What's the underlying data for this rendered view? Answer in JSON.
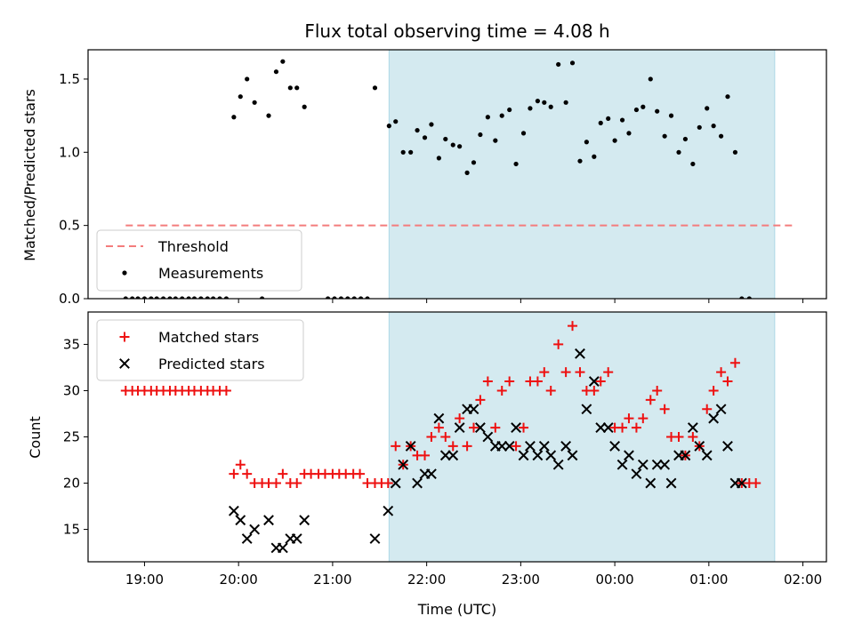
{
  "chart_data": {
    "type": "scatter",
    "title": "Flux total observing time = 4.08 h",
    "xlabel": "Time (UTC)",
    "x_unit": "hours since 00:00 UTC (negative = previous evening)",
    "xlim": [
      -5.6,
      2.25
    ],
    "x_ticks": [
      {
        "value": -5,
        "label": "19:00"
      },
      {
        "value": -4,
        "label": "20:00"
      },
      {
        "value": -3,
        "label": "21:00"
      },
      {
        "value": -2,
        "label": "22:00"
      },
      {
        "value": -1,
        "label": "23:00"
      },
      {
        "value": 0,
        "label": "00:00"
      },
      {
        "value": 1,
        "label": "01:00"
      },
      {
        "value": 2,
        "label": "02:00"
      }
    ],
    "highlight_span": {
      "from": -2.4,
      "to": 1.7,
      "color": "#d4eaf0"
    },
    "top": {
      "ylabel": "Matched/Predicted stars",
      "ylim": [
        0,
        1.7
      ],
      "y_ticks": [
        0.0,
        0.5,
        1.0,
        1.5
      ],
      "y_tick_labels": [
        "0.0",
        "0.5",
        "1.0",
        "1.5"
      ],
      "threshold": {
        "name": "Threshold",
        "value": 0.5,
        "x_from": -5.2,
        "x_to": 1.9,
        "color": "#f47c7c"
      },
      "measurements": {
        "name": "Measurements",
        "color": "#000000",
        "points": [
          [
            -5.2,
            0
          ],
          [
            -5.13,
            0
          ],
          [
            -5.07,
            0
          ],
          [
            -5.0,
            0
          ],
          [
            -4.93,
            0
          ],
          [
            -4.87,
            0
          ],
          [
            -4.8,
            0
          ],
          [
            -4.73,
            0
          ],
          [
            -4.67,
            0
          ],
          [
            -4.6,
            0
          ],
          [
            -4.53,
            0
          ],
          [
            -4.47,
            0
          ],
          [
            -4.4,
            0
          ],
          [
            -4.33,
            0
          ],
          [
            -4.27,
            0
          ],
          [
            -4.2,
            0
          ],
          [
            -4.13,
            0
          ],
          [
            -4.05,
            1.24
          ],
          [
            -3.98,
            1.38
          ],
          [
            -3.91,
            1.5
          ],
          [
            -3.83,
            1.34
          ],
          [
            -3.75,
            0
          ],
          [
            -3.68,
            1.25
          ],
          [
            -3.6,
            1.55
          ],
          [
            -3.53,
            1.62
          ],
          [
            -3.45,
            1.44
          ],
          [
            -3.38,
            1.44
          ],
          [
            -3.3,
            1.31
          ],
          [
            -3.05,
            0
          ],
          [
            -2.98,
            0
          ],
          [
            -2.91,
            0
          ],
          [
            -2.84,
            0
          ],
          [
            -2.77,
            0
          ],
          [
            -2.7,
            0
          ],
          [
            -2.63,
            0
          ],
          [
            -2.55,
            1.44
          ],
          [
            -2.4,
            1.18
          ],
          [
            -2.33,
            1.21
          ],
          [
            -2.25,
            1.0
          ],
          [
            -2.17,
            1.0
          ],
          [
            -2.1,
            1.15
          ],
          [
            -2.02,
            1.1
          ],
          [
            -1.95,
            1.19
          ],
          [
            -1.87,
            0.96
          ],
          [
            -1.8,
            1.09
          ],
          [
            -1.72,
            1.05
          ],
          [
            -1.65,
            1.04
          ],
          [
            -1.57,
            0.86
          ],
          [
            -1.5,
            0.93
          ],
          [
            -1.43,
            1.12
          ],
          [
            -1.35,
            1.24
          ],
          [
            -1.27,
            1.08
          ],
          [
            -1.2,
            1.25
          ],
          [
            -1.12,
            1.29
          ],
          [
            -1.05,
            0.92
          ],
          [
            -0.97,
            1.13
          ],
          [
            -0.9,
            1.3
          ],
          [
            -0.82,
            1.35
          ],
          [
            -0.75,
            1.34
          ],
          [
            -0.68,
            1.31
          ],
          [
            -0.6,
            1.6
          ],
          [
            -0.52,
            1.34
          ],
          [
            -0.45,
            1.61
          ],
          [
            -0.37,
            0.94
          ],
          [
            -0.3,
            1.07
          ],
          [
            -0.22,
            0.97
          ],
          [
            -0.15,
            1.2
          ],
          [
            -0.07,
            1.23
          ],
          [
            0.0,
            1.08
          ],
          [
            0.08,
            1.22
          ],
          [
            0.15,
            1.13
          ],
          [
            0.23,
            1.29
          ],
          [
            0.3,
            1.31
          ],
          [
            0.38,
            1.5
          ],
          [
            0.45,
            1.28
          ],
          [
            0.53,
            1.11
          ],
          [
            0.6,
            1.25
          ],
          [
            0.68,
            1.0
          ],
          [
            0.75,
            1.09
          ],
          [
            0.83,
            0.92
          ],
          [
            0.9,
            1.17
          ],
          [
            0.98,
            1.3
          ],
          [
            1.05,
            1.18
          ],
          [
            1.13,
            1.11
          ],
          [
            1.2,
            1.38
          ],
          [
            1.28,
            1.0
          ],
          [
            1.35,
            0
          ],
          [
            1.43,
            0
          ]
        ]
      },
      "legend": {
        "placement": "lower-left",
        "entries": [
          "Threshold",
          "Measurements"
        ]
      }
    },
    "bottom": {
      "ylabel": "Count",
      "ylim": [
        11.5,
        38.5
      ],
      "y_ticks": [
        15,
        20,
        25,
        30,
        35
      ],
      "y_tick_labels": [
        "15",
        "20",
        "25",
        "30",
        "35"
      ],
      "series": [
        {
          "name": "Matched stars",
          "marker": "plus",
          "color": "#ee1111",
          "points": [
            [
              -5.2,
              30
            ],
            [
              -5.13,
              30
            ],
            [
              -5.07,
              30
            ],
            [
              -5.0,
              30
            ],
            [
              -4.93,
              30
            ],
            [
              -4.87,
              30
            ],
            [
              -4.8,
              30
            ],
            [
              -4.73,
              30
            ],
            [
              -4.67,
              30
            ],
            [
              -4.6,
              30
            ],
            [
              -4.53,
              30
            ],
            [
              -4.47,
              30
            ],
            [
              -4.4,
              30
            ],
            [
              -4.33,
              30
            ],
            [
              -4.27,
              30
            ],
            [
              -4.2,
              30
            ],
            [
              -4.13,
              30
            ],
            [
              -4.05,
              21
            ],
            [
              -3.98,
              22
            ],
            [
              -3.91,
              21
            ],
            [
              -3.83,
              20
            ],
            [
              -3.75,
              20
            ],
            [
              -3.68,
              20
            ],
            [
              -3.6,
              20
            ],
            [
              -3.53,
              21
            ],
            [
              -3.45,
              20
            ],
            [
              -3.38,
              20
            ],
            [
              -3.3,
              21
            ],
            [
              -3.23,
              21
            ],
            [
              -3.15,
              21
            ],
            [
              -3.08,
              21
            ],
            [
              -3.0,
              21
            ],
            [
              -2.93,
              21
            ],
            [
              -2.86,
              21
            ],
            [
              -2.78,
              21
            ],
            [
              -2.71,
              21
            ],
            [
              -2.63,
              20
            ],
            [
              -2.55,
              20
            ],
            [
              -2.48,
              20
            ],
            [
              -2.41,
              20
            ],
            [
              -2.33,
              24
            ],
            [
              -2.25,
              22
            ],
            [
              -2.17,
              24
            ],
            [
              -2.1,
              23
            ],
            [
              -2.02,
              23
            ],
            [
              -1.95,
              25
            ],
            [
              -1.87,
              26
            ],
            [
              -1.8,
              25
            ],
            [
              -1.72,
              24
            ],
            [
              -1.65,
              27
            ],
            [
              -1.57,
              24
            ],
            [
              -1.5,
              26
            ],
            [
              -1.43,
              29
            ],
            [
              -1.35,
              31
            ],
            [
              -1.27,
              26
            ],
            [
              -1.2,
              30
            ],
            [
              -1.12,
              31
            ],
            [
              -1.05,
              24
            ],
            [
              -0.97,
              26
            ],
            [
              -0.9,
              31
            ],
            [
              -0.82,
              31
            ],
            [
              -0.75,
              32
            ],
            [
              -0.68,
              30
            ],
            [
              -0.6,
              35
            ],
            [
              -0.52,
              32
            ],
            [
              -0.45,
              37
            ],
            [
              -0.37,
              32
            ],
            [
              -0.3,
              30
            ],
            [
              -0.22,
              30
            ],
            [
              -0.15,
              31
            ],
            [
              -0.07,
              32
            ],
            [
              0.0,
              26
            ],
            [
              0.08,
              26
            ],
            [
              0.15,
              27
            ],
            [
              0.23,
              26
            ],
            [
              0.3,
              27
            ],
            [
              0.38,
              29
            ],
            [
              0.45,
              30
            ],
            [
              0.53,
              28
            ],
            [
              0.6,
              25
            ],
            [
              0.68,
              25
            ],
            [
              0.75,
              23
            ],
            [
              0.83,
              25
            ],
            [
              0.9,
              24
            ],
            [
              0.98,
              28
            ],
            [
              1.05,
              30
            ],
            [
              1.13,
              32
            ],
            [
              1.2,
              31
            ],
            [
              1.28,
              33
            ],
            [
              1.35,
              20
            ],
            [
              1.43,
              20
            ],
            [
              1.5,
              20
            ]
          ]
        },
        {
          "name": "Predicted stars",
          "marker": "x",
          "color": "#000000",
          "points": [
            [
              -4.05,
              17
            ],
            [
              -3.98,
              16
            ],
            [
              -3.91,
              14
            ],
            [
              -3.83,
              15
            ],
            [
              -3.68,
              16
            ],
            [
              -3.6,
              13
            ],
            [
              -3.53,
              13
            ],
            [
              -3.45,
              14
            ],
            [
              -3.38,
              14
            ],
            [
              -3.3,
              16
            ],
            [
              -2.55,
              14
            ],
            [
              -2.41,
              17
            ],
            [
              -2.33,
              20
            ],
            [
              -2.25,
              22
            ],
            [
              -2.17,
              24
            ],
            [
              -2.1,
              20
            ],
            [
              -2.02,
              21
            ],
            [
              -1.95,
              21
            ],
            [
              -1.87,
              27
            ],
            [
              -1.8,
              23
            ],
            [
              -1.72,
              23
            ],
            [
              -1.65,
              26
            ],
            [
              -1.57,
              28
            ],
            [
              -1.5,
              28
            ],
            [
              -1.43,
              26
            ],
            [
              -1.35,
              25
            ],
            [
              -1.27,
              24
            ],
            [
              -1.2,
              24
            ],
            [
              -1.12,
              24
            ],
            [
              -1.05,
              26
            ],
            [
              -0.97,
              23
            ],
            [
              -0.9,
              24
            ],
            [
              -0.82,
              23
            ],
            [
              -0.75,
              24
            ],
            [
              -0.68,
              23
            ],
            [
              -0.6,
              22
            ],
            [
              -0.52,
              24
            ],
            [
              -0.45,
              23
            ],
            [
              -0.37,
              34
            ],
            [
              -0.3,
              28
            ],
            [
              -0.22,
              31
            ],
            [
              -0.15,
              26
            ],
            [
              -0.07,
              26
            ],
            [
              0.0,
              24
            ],
            [
              0.08,
              22
            ],
            [
              0.15,
              23
            ],
            [
              0.23,
              21
            ],
            [
              0.3,
              22
            ],
            [
              0.38,
              20
            ],
            [
              0.45,
              22
            ],
            [
              0.53,
              22
            ],
            [
              0.6,
              20
            ],
            [
              0.68,
              23
            ],
            [
              0.75,
              23
            ],
            [
              0.83,
              26
            ],
            [
              0.9,
              24
            ],
            [
              0.98,
              23
            ],
            [
              1.05,
              27
            ],
            [
              1.13,
              28
            ],
            [
              1.2,
              24
            ],
            [
              1.28,
              20
            ],
            [
              1.35,
              20
            ]
          ]
        }
      ],
      "legend": {
        "placement": "top-left",
        "entries": [
          "Matched stars",
          "Predicted stars"
        ]
      }
    }
  }
}
